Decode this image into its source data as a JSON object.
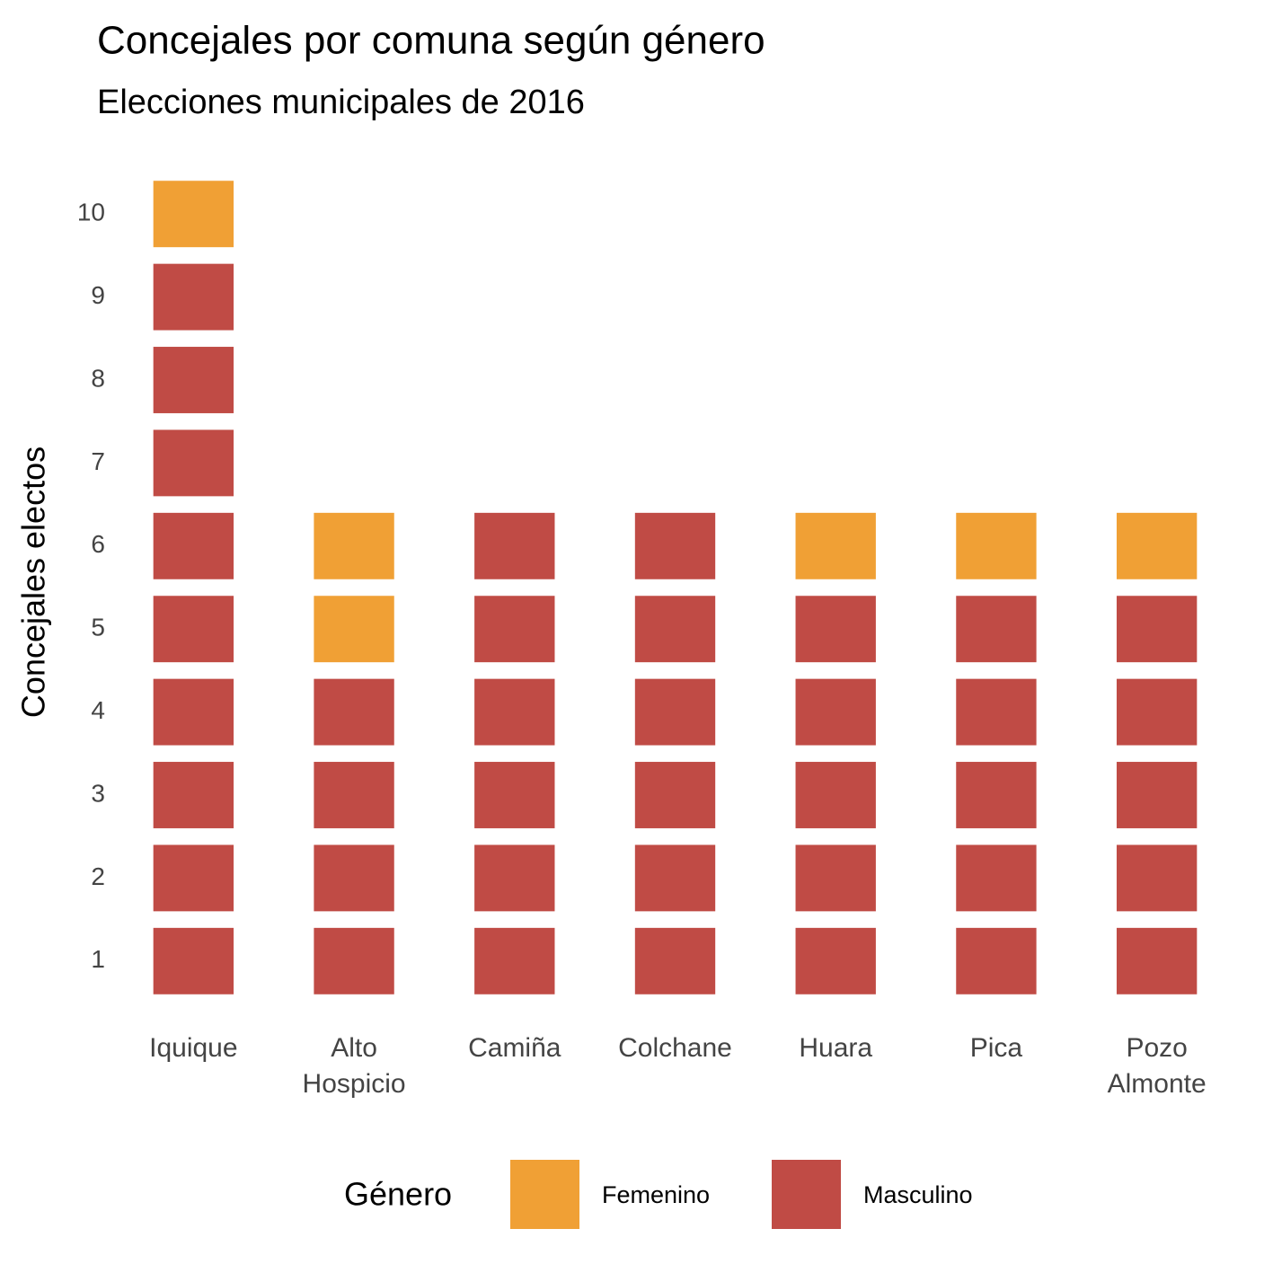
{
  "chart_data": {
    "type": "bar",
    "stacked": true,
    "title": "Concejales por comuna según género",
    "subtitle": "Elecciones municipales de 2016",
    "y_label": "Concejales electos",
    "legend_title": "Género",
    "legend_position": "bottom",
    "categories": [
      "Iquique",
      "Alto Hospicio",
      "Camiña",
      "Colchane",
      "Huara",
      "Pica",
      "Pozo Almonte"
    ],
    "series": [
      {
        "name": "Femenino",
        "color": "#F0A035",
        "values": [
          1,
          2,
          0,
          0,
          1,
          1,
          1
        ]
      },
      {
        "name": "Masculino",
        "color": "#C04B45",
        "values": [
          9,
          4,
          6,
          6,
          5,
          5,
          5
        ]
      }
    ],
    "ylim": [
      0.5,
      10.5
    ],
    "yticks": [
      1,
      2,
      3,
      4,
      5,
      6,
      7,
      8,
      9,
      10
    ],
    "grid": false
  }
}
